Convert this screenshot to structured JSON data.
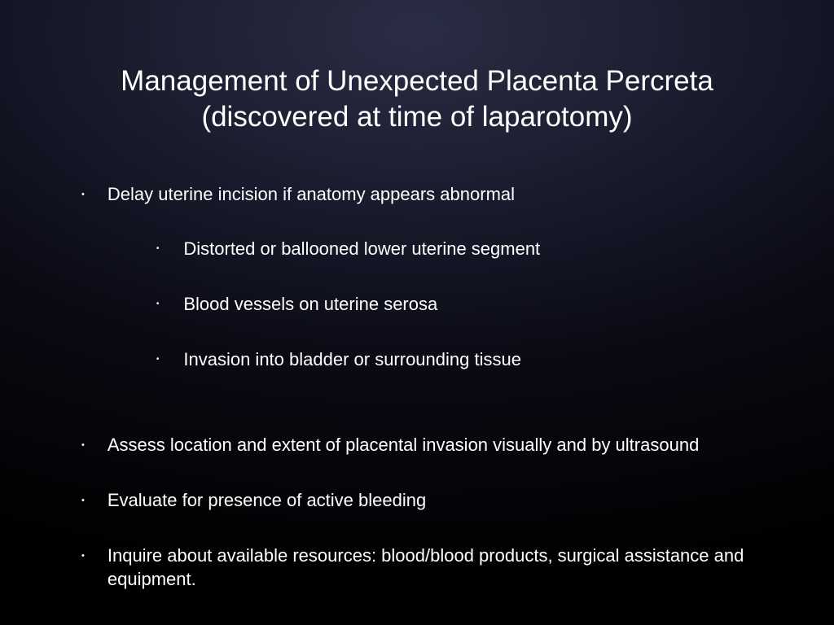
{
  "title_line1": "Management of Unexpected Placenta Percreta",
  "title_line2": "(discovered at time of laparotomy)",
  "bullets": [
    {
      "text": "Delay uterine incision if anatomy appears abnormal",
      "sub": [
        "Distorted or ballooned lower uterine segment",
        "Blood vessels on uterine serosa",
        "Invasion into bladder or surrounding tissue"
      ]
    },
    {
      "text": "Assess location and extent of placental invasion visually and by ultrasound"
    },
    {
      "text": "Evaluate for presence of active bleeding"
    },
    {
      "text": "Inquire about available resources:  blood/blood products, surgical assistance and equipment."
    }
  ],
  "style": {
    "background_gradient": {
      "inner": "#2a2d44",
      "mid": "#1a1c2e",
      "outer": "#000000"
    },
    "text_color": "#ffffff",
    "title_fontsize": 35,
    "body_fontsize": 22,
    "sub_fontsize": 22,
    "bullet_char": "•",
    "font_family": "Arial, Helvetica, sans-serif"
  }
}
